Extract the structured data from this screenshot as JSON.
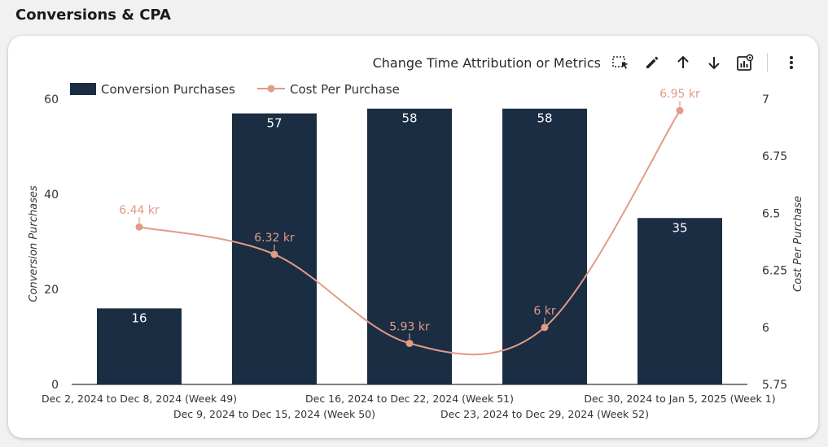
{
  "page": {
    "title": "Conversions & CPA"
  },
  "toolbar": {
    "change_label": "Change Time Attribution or Metrics"
  },
  "colors": {
    "bar": "#1b2d43",
    "line": "#e29b86",
    "axis": "#333333"
  },
  "chart_data": {
    "type": "bar",
    "categories": [
      "Dec 2, 2024 to Dec 8, 2024 (Week 49)",
      "Dec 9, 2024 to Dec 15, 2024 (Week 50)",
      "Dec 16, 2024 to Dec 22, 2024 (Week 51)",
      "Dec 23, 2024 to Dec 29, 2024 (Week 52)",
      "Dec 30, 2024 to Jan 5, 2025 (Week 1)"
    ],
    "series": [
      {
        "name": "Conversion Purchases",
        "type": "bar",
        "axis": "left",
        "values": [
          16,
          57,
          58,
          58,
          35
        ],
        "labels": [
          "16",
          "57",
          "58",
          "58",
          "35"
        ]
      },
      {
        "name": "Cost Per Purchase",
        "type": "line",
        "axis": "right",
        "values": [
          6.44,
          6.32,
          5.93,
          6.0,
          6.95
        ],
        "labels": [
          "6.44 kr",
          "6.32 kr",
          "5.93 kr",
          "6 kr",
          "6.95 kr"
        ]
      }
    ],
    "ylabel": "Conversion Purchases",
    "y2label": "Cost Per Purchase",
    "ylim": [
      0,
      60
    ],
    "yticks": [
      "0",
      "20",
      "40",
      "60"
    ],
    "y2lim": [
      5.75,
      7
    ],
    "y2ticks": [
      "5.75",
      "6",
      "6.25",
      "6.5",
      "6.75",
      "7"
    ],
    "grid": false,
    "legend": "top-left"
  }
}
